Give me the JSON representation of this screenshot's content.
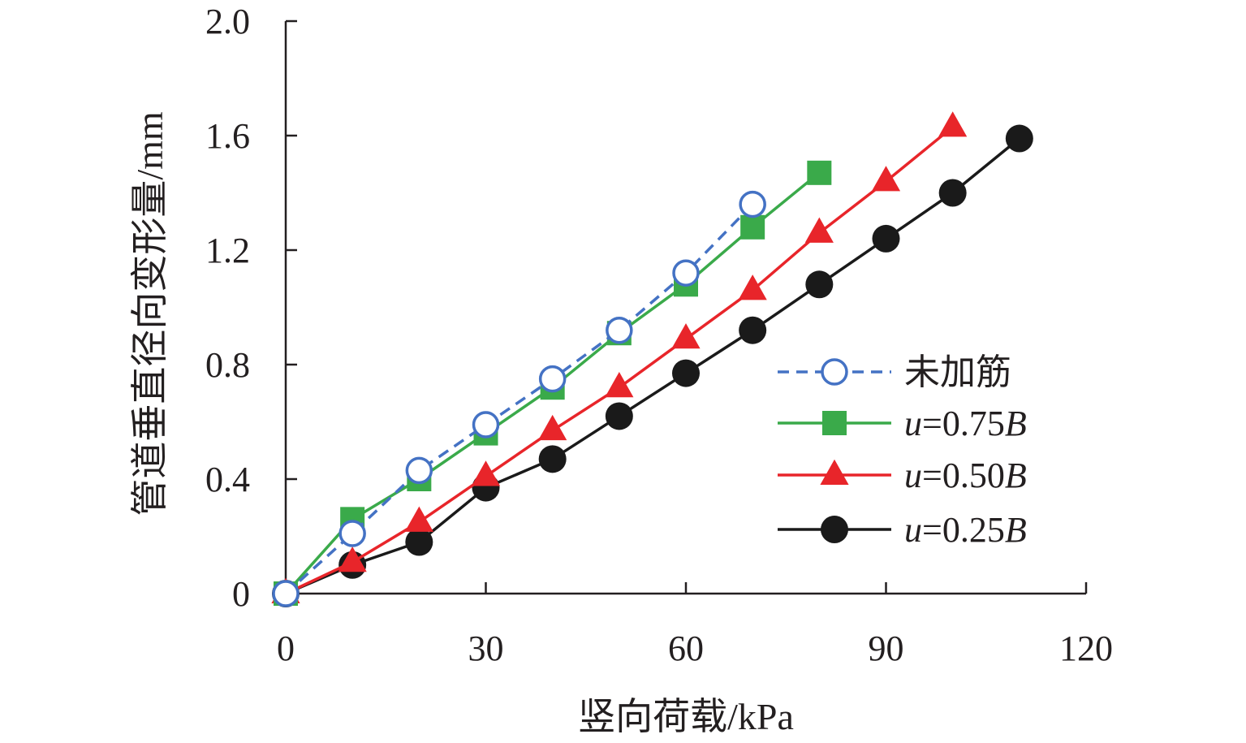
{
  "chart_data": {
    "type": "line",
    "xlabel": "竖向荷载/kPa",
    "ylabel": "管道垂直径向变形量/mm",
    "xlim": [
      0,
      120
    ],
    "ylim": [
      0,
      2.0
    ],
    "x_ticks": [
      0,
      30,
      60,
      90,
      120
    ],
    "x_tick_labels": [
      "0",
      "30",
      "60",
      "90",
      "120"
    ],
    "y_ticks": [
      0,
      0.4,
      0.8,
      1.2,
      1.6,
      2.0
    ],
    "y_tick_labels": [
      "0",
      "0.4",
      "0.8",
      "1.2",
      "1.6",
      "2.0"
    ],
    "grid": false,
    "legend_position": "right",
    "series": [
      {
        "name": "未加筋",
        "name_parts": [
          {
            "text": "未加筋",
            "italic": false
          }
        ],
        "color": "#4472c4",
        "marker": "open-circle",
        "line_style": "dashed",
        "x": [
          0,
          10,
          20,
          30,
          40,
          50,
          60,
          70
        ],
        "y": [
          0,
          0.21,
          0.43,
          0.59,
          0.75,
          0.92,
          1.12,
          1.36
        ]
      },
      {
        "name": "u=0.75B",
        "name_parts": [
          {
            "text": "u",
            "italic": true
          },
          {
            "text": "=0.75",
            "italic": false
          },
          {
            "text": "B",
            "italic": true
          }
        ],
        "color": "#3aaa4a",
        "marker": "filled-square",
        "line_style": "solid",
        "x": [
          0,
          10,
          20,
          30,
          40,
          50,
          60,
          70,
          80
        ],
        "y": [
          0,
          0.26,
          0.4,
          0.56,
          0.72,
          0.91,
          1.08,
          1.28,
          1.47
        ]
      },
      {
        "name": "u=0.50B",
        "name_parts": [
          {
            "text": "u",
            "italic": true
          },
          {
            "text": "=0.50",
            "italic": false
          },
          {
            "text": "B",
            "italic": true
          }
        ],
        "color": "#e8252a",
        "marker": "filled-triangle",
        "line_style": "solid",
        "x": [
          0,
          10,
          20,
          30,
          40,
          50,
          60,
          70,
          80,
          90,
          100
        ],
        "y": [
          0,
          0.11,
          0.25,
          0.41,
          0.57,
          0.72,
          0.89,
          1.06,
          1.26,
          1.44,
          1.63
        ]
      },
      {
        "name": "u=0.25B",
        "name_parts": [
          {
            "text": "u",
            "italic": true
          },
          {
            "text": "=0.25",
            "italic": false
          },
          {
            "text": "B",
            "italic": true
          }
        ],
        "color": "#1a1a1a",
        "marker": "filled-circle",
        "line_style": "solid",
        "x": [
          0,
          10,
          20,
          30,
          40,
          50,
          60,
          70,
          80,
          90,
          100,
          110
        ],
        "y": [
          0,
          0.1,
          0.18,
          0.37,
          0.47,
          0.62,
          0.77,
          0.92,
          1.08,
          1.24,
          1.4,
          1.59
        ]
      }
    ]
  }
}
